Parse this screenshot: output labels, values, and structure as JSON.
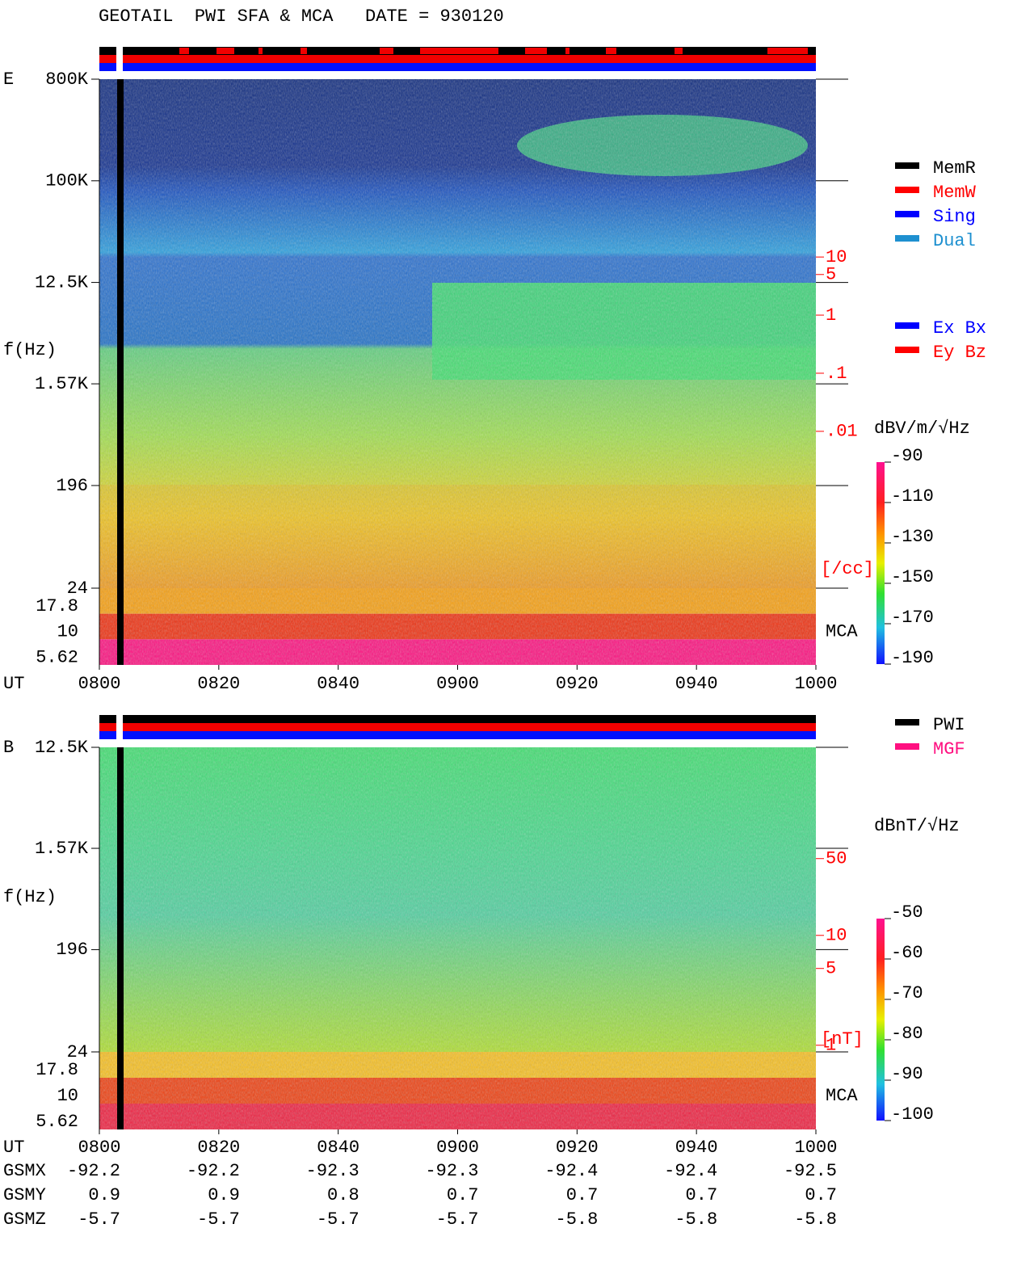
{
  "title": "GEOTAIL  PWI SFA & MCA   DATE = 930120",
  "time_axis": {
    "label": "UT",
    "labels": [
      "0800",
      "0820",
      "0840",
      "0900",
      "0920",
      "0940",
      "1000"
    ]
  },
  "panels": [
    {
      "label": "E",
      "ylabel": "f(Hz)",
      "log": true,
      "ylim": [
        24,
        800000
      ],
      "yticks": [
        {
          "value": 800000,
          "label": "800K"
        },
        {
          "value": 100000,
          "label": "100K"
        },
        {
          "value": 12500,
          "label": "12.5K"
        },
        {
          "value": 1570,
          "label": "1.57K"
        },
        196,
        24
      ],
      "mca_ticks": [
        17.8,
        10,
        5.62
      ],
      "mca_label": "MCA",
      "right_axis": {
        "color": "#ff0000",
        "log": true,
        "ylim": [
          2e-05,
          11500
        ],
        "ticks": [
          10,
          5,
          1,
          {
            "value": 0.1,
            "label": ".1"
          },
          {
            "value": 0.01,
            "label": ".01"
          }
        ],
        "unit": "[/cc]"
      },
      "colorbar": {
        "unit": "dBV/m/√Hz",
        "clim": [
          -190,
          -90
        ],
        "ticks": [
          -90,
          -110,
          -130,
          -150,
          -170,
          -190
        ]
      },
      "legend": [
        {
          "name": "MemR",
          "color": "#000000"
        },
        {
          "name": "MemW",
          "color": "#ff0000"
        },
        {
          "name": "Sing",
          "color": "#0000ff"
        },
        {
          "name": "Dual",
          "color": "#1e90d0"
        }
      ],
      "legend2": [
        {
          "name": "Ex Bx",
          "color": "#0000ff"
        },
        {
          "name": "Ey Bz",
          "color": "#ff0000"
        }
      ]
    },
    {
      "label": "B",
      "ylabel": "f(Hz)",
      "log": true,
      "ylim": [
        24,
        12500
      ],
      "yticks": [
        {
          "value": 12500,
          "label": "12.5K"
        },
        {
          "value": 1570,
          "label": "1.57K"
        },
        196,
        24
      ],
      "mca_ticks": [
        17.8,
        10,
        5.62
      ],
      "mca_label": "MCA",
      "right_axis": {
        "color": "#ff0000",
        "log": true,
        "ylim": [
          0.87,
          515
        ],
        "ticks": [
          50,
          10,
          5,
          1
        ],
        "unit": "[nT]"
      },
      "colorbar": {
        "unit": "dBnT/√Hz",
        "clim": [
          -100,
          -50
        ],
        "ticks": [
          -50,
          -60,
          -70,
          -80,
          -90,
          -100
        ]
      },
      "legend": [
        {
          "name": "PWI",
          "color": "#000000"
        },
        {
          "name": "MGF",
          "color": "#ff1080"
        }
      ]
    }
  ],
  "orbit": [
    {
      "name": "GSMX",
      "values": [
        -92.2,
        -92.2,
        -92.3,
        -92.3,
        -92.4,
        -92.4,
        -92.5
      ]
    },
    {
      "name": "GSMY",
      "values": [
        0.9,
        0.9,
        0.8,
        0.7,
        0.7,
        0.7,
        0.7
      ]
    },
    {
      "name": "GSMZ",
      "values": [
        -5.7,
        -5.7,
        -5.7,
        -5.7,
        -5.8,
        -5.8,
        -5.8
      ]
    }
  ]
}
